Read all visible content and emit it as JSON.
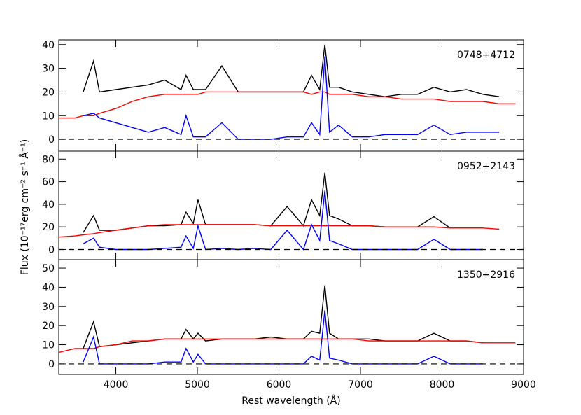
{
  "chart_data": [
    {
      "type": "line",
      "annotation": "0748+4712",
      "xlim": [
        3300,
        9000
      ],
      "ylim": [
        -5,
        42
      ],
      "yticks": [
        0,
        10,
        20,
        30,
        40
      ],
      "hline": 0,
      "x": [
        3300,
        3500,
        3600,
        3727,
        3800,
        4000,
        4200,
        4400,
        4600,
        4800,
        4861,
        4950,
        5007,
        5100,
        5300,
        5500,
        5700,
        5900,
        6100,
        6300,
        6400,
        6500,
        6563,
        6620,
        6731,
        6900,
        7100,
        7300,
        7500,
        7700,
        7900,
        8100,
        8300,
        8500,
        8700,
        8900
      ],
      "series": [
        {
          "color": "#000000",
          "values": [
            null,
            null,
            20,
            33,
            20,
            21,
            22,
            23,
            25,
            21,
            27,
            21,
            21,
            21,
            31,
            20,
            20,
            20,
            20,
            20,
            27,
            21,
            40,
            22,
            22,
            20,
            19,
            18,
            19,
            19,
            22,
            20,
            21,
            19,
            18,
            null
          ]
        },
        {
          "color": "#ff0000",
          "values": [
            9,
            9,
            10,
            10,
            11,
            13,
            16,
            18,
            19,
            19,
            19,
            19,
            19,
            20,
            20,
            20,
            20,
            20,
            20,
            20,
            19,
            20,
            20,
            19,
            19,
            19,
            18,
            18,
            17,
            17,
            17,
            16,
            16,
            16,
            15,
            15
          ]
        },
        {
          "color": "#0000ff",
          "values": [
            null,
            null,
            10,
            11,
            9,
            7,
            5,
            3,
            5,
            2,
            10,
            1,
            1,
            1,
            7,
            0,
            0,
            0,
            1,
            1,
            7,
            2,
            35,
            3,
            6,
            1,
            1,
            2,
            2,
            2,
            6,
            2,
            3,
            3,
            3,
            null
          ]
        }
      ]
    },
    {
      "type": "line",
      "annotation": "0952+2143",
      "ylabel": "Flux (10⁻¹⁷erg cm⁻² s⁻¹ Å⁻¹)",
      "xlim": [
        3300,
        9000
      ],
      "ylim": [
        -9,
        87
      ],
      "yticks": [
        0,
        20,
        40,
        60,
        80
      ],
      "hline": 0,
      "x": [
        3300,
        3500,
        3600,
        3727,
        3800,
        4000,
        4200,
        4400,
        4600,
        4800,
        4861,
        4950,
        5007,
        5100,
        5300,
        5500,
        5700,
        5900,
        6100,
        6300,
        6400,
        6500,
        6563,
        6620,
        6731,
        6900,
        7100,
        7300,
        7500,
        7700,
        7900,
        8100,
        8300,
        8500,
        8700,
        8900
      ],
      "series": [
        {
          "color": "#000000",
          "values": [
            null,
            null,
            15,
            30,
            17,
            17,
            19,
            21,
            21,
            22,
            33,
            23,
            44,
            22,
            22,
            22,
            22,
            21,
            38,
            21,
            44,
            30,
            68,
            30,
            27,
            21,
            21,
            20,
            20,
            20,
            29,
            19,
            19,
            19,
            null,
            null
          ]
        },
        {
          "color": "#ff0000",
          "values": [
            11,
            12,
            13,
            14,
            15,
            17,
            19,
            21,
            22,
            22,
            22,
            22,
            22,
            22,
            22,
            22,
            22,
            21,
            21,
            21,
            21,
            21,
            21,
            21,
            21,
            21,
            21,
            20,
            20,
            20,
            20,
            19,
            19,
            19,
            18,
            null
          ]
        },
        {
          "color": "#0000ff",
          "values": [
            null,
            null,
            5,
            10,
            2,
            0,
            0,
            0,
            1,
            2,
            12,
            1,
            21,
            0,
            1,
            0,
            1,
            0,
            17,
            0,
            22,
            8,
            52,
            8,
            5,
            0,
            0,
            0,
            0,
            0,
            9,
            0,
            0,
            0,
            null,
            null
          ]
        }
      ]
    },
    {
      "type": "line",
      "annotation": "1350+2916",
      "xlabel": "Rest wavelength (Å)",
      "xlim": [
        3300,
        9000
      ],
      "ylim": [
        -5.5,
        54.4
      ],
      "yticks": [
        0,
        10,
        20,
        30,
        40,
        50
      ],
      "hline": 0,
      "xticks": [
        4000,
        5000,
        6000,
        7000,
        8000,
        9000
      ],
      "x": [
        3300,
        3500,
        3600,
        3727,
        3800,
        4000,
        4200,
        4400,
        4600,
        4800,
        4861,
        4950,
        5007,
        5100,
        5300,
        5500,
        5700,
        5900,
        6100,
        6300,
        6400,
        6500,
        6563,
        6620,
        6731,
        6900,
        7100,
        7300,
        7500,
        7700,
        7900,
        8100,
        8300,
        8500,
        8700,
        8900
      ],
      "series": [
        {
          "color": "#000000",
          "values": [
            null,
            null,
            8,
            22,
            9,
            10,
            11,
            12,
            13,
            13,
            18,
            13,
            16,
            12,
            13,
            13,
            13,
            14,
            13,
            13,
            17,
            16,
            41,
            16,
            13,
            13,
            13,
            12,
            12,
            12,
            16,
            12,
            12,
            11,
            null,
            null
          ]
        },
        {
          "color": "#ff0000",
          "values": [
            6,
            8,
            8,
            8,
            9,
            10,
            12,
            12,
            13,
            13,
            13,
            13,
            13,
            13,
            13,
            13,
            13,
            13,
            13,
            13,
            13,
            13,
            13,
            13,
            13,
            13,
            12,
            12,
            12,
            12,
            12,
            12,
            12,
            11,
            11,
            11
          ]
        },
        {
          "color": "#0000ff",
          "values": [
            null,
            null,
            1,
            14,
            0,
            0,
            0,
            0,
            1,
            1,
            8,
            1,
            5,
            0,
            0,
            0,
            0,
            0,
            0,
            0,
            4,
            2,
            28,
            3,
            2,
            0,
            0,
            0,
            0,
            0,
            4,
            0,
            0,
            0,
            null,
            null
          ]
        }
      ]
    }
  ]
}
